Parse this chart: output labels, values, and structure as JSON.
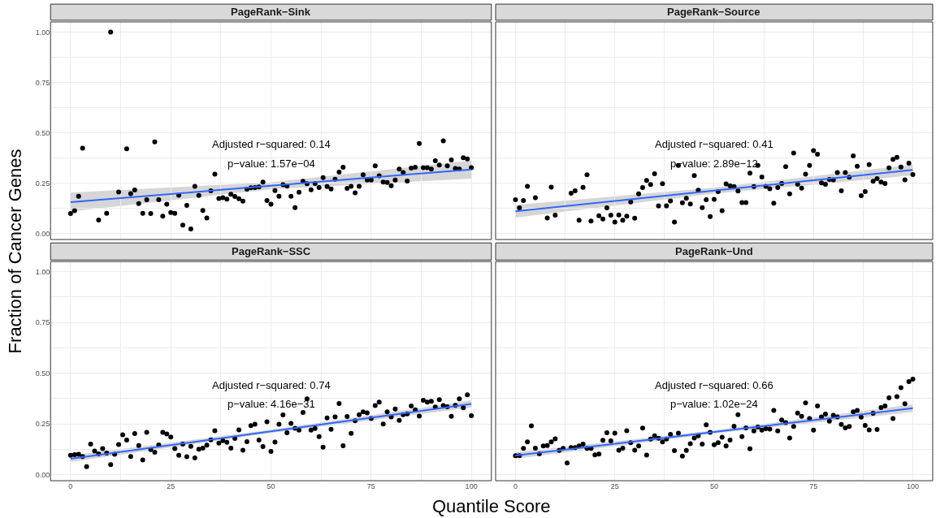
{
  "chart_data": [
    {
      "type": "scatter",
      "title": "PageRank−Sink",
      "ylabel": "Fraction of Cancer Genes",
      "xlim": [
        -5,
        105
      ],
      "ylim": [
        -0.03,
        1.05
      ],
      "grid": true,
      "tick_labels": "y",
      "xticks": [
        {
          "value": 0,
          "label": null
        },
        {
          "value": 12.5,
          "label": null
        },
        {
          "value": 25,
          "label": null
        },
        {
          "value": 37.5,
          "label": null
        },
        {
          "value": 50,
          "label": null
        },
        {
          "value": 62.5,
          "label": null
        },
        {
          "value": 75,
          "label": null
        },
        {
          "value": 87.5,
          "label": null
        },
        {
          "value": 100,
          "label": null
        }
      ],
      "yticks": [
        {
          "value": 0,
          "label": "0.00"
        },
        {
          "value": 0.125,
          "label": null
        },
        {
          "value": 0.25,
          "label": "0.25"
        },
        {
          "value": 0.375,
          "label": null
        },
        {
          "value": 0.5,
          "label": "0.50"
        },
        {
          "value": 0.625,
          "label": null
        },
        {
          "value": 0.75,
          "label": "0.75"
        },
        {
          "value": 0.875,
          "label": null
        },
        {
          "value": 1,
          "label": "1.00"
        }
      ],
      "annotations": [
        "Adjusted r−squared: 0.14",
        "p−value: 1.57e−04"
      ],
      "series": [
        {
          "color": "#000000",
          "marker": "circle",
          "x": [
            0,
            1,
            2,
            3,
            7,
            9,
            10,
            12,
            14,
            15,
            16,
            17,
            18,
            19,
            20,
            21,
            22,
            23,
            24,
            25,
            26,
            27,
            28,
            29,
            30,
            31,
            32,
            33,
            34,
            35,
            36,
            37,
            38,
            39,
            40,
            41,
            42,
            43,
            44,
            45,
            46,
            47,
            48,
            49,
            50,
            51,
            52,
            53,
            54,
            55,
            56,
            57,
            58,
            59,
            60,
            61,
            62,
            63,
            64,
            65,
            66,
            67,
            68,
            69,
            70,
            71,
            72,
            73,
            74,
            75,
            76,
            77,
            78,
            79,
            80,
            81,
            82,
            83,
            84,
            85,
            86,
            87,
            88,
            89,
            90,
            91,
            92,
            93,
            94,
            95,
            96,
            97,
            98,
            99,
            100
          ],
          "values": [
            0.099,
            0.113,
            0.185,
            0.423,
            0.067,
            0.1,
            1.0,
            0.206,
            0.42,
            0.198,
            0.216,
            0.148,
            0.1,
            0.167,
            0.099,
            0.455,
            0.168,
            0.086,
            0.145,
            0.104,
            0.1,
            0.19,
            0.042,
            0.139,
            0.022,
            0.234,
            0.189,
            0.114,
            0.077,
            0.212,
            0.294,
            0.174,
            0.178,
            0.171,
            0.195,
            0.184,
            0.173,
            0.16,
            0.22,
            0.227,
            0.228,
            0.231,
            0.255,
            0.163,
            0.145,
            0.213,
            0.185,
            0.242,
            0.235,
            0.185,
            0.128,
            0.205,
            0.259,
            0.247,
            0.217,
            0.248,
            0.228,
            0.277,
            0.233,
            0.221,
            0.269,
            0.305,
            0.329,
            0.224,
            0.234,
            0.202,
            0.234,
            0.291,
            0.265,
            0.265,
            0.336,
            0.286,
            0.255,
            0.253,
            0.237,
            0.265,
            0.32,
            0.302,
            0.26,
            0.325,
            0.329,
            0.447,
            0.327,
            0.327,
            0.32,
            0.361,
            0.34,
            0.46,
            0.336,
            0.365,
            0.323,
            0.32,
            0.376,
            0.37,
            0.327
          ]
        },
        {
          "type": "line",
          "color": "#3366ff",
          "marker": "none",
          "line_style": "solid",
          "x": [
            0,
            50,
            100
          ],
          "values": [
            0.155,
            0.237,
            0.318
          ],
          "lower": [
            0.109,
            0.22,
            0.272
          ],
          "upper": [
            0.203,
            0.254,
            0.362
          ]
        }
      ]
    },
    {
      "type": "scatter",
      "title": "PageRank−Source",
      "xlim": [
        -5,
        105
      ],
      "ylim": [
        -0.03,
        1.05
      ],
      "grid": true,
      "tick_labels": false,
      "xticks": [
        {
          "value": 0,
          "label": null
        },
        {
          "value": 12.5,
          "label": null
        },
        {
          "value": 25,
          "label": null
        },
        {
          "value": 37.5,
          "label": null
        },
        {
          "value": 50,
          "label": null
        },
        {
          "value": 62.5,
          "label": null
        },
        {
          "value": 75,
          "label": null
        },
        {
          "value": 87.5,
          "label": null
        },
        {
          "value": 100,
          "label": null
        }
      ],
      "yticks": [
        {
          "value": 0,
          "label": null
        },
        {
          "value": 0.125,
          "label": null
        },
        {
          "value": 0.25,
          "label": null
        },
        {
          "value": 0.375,
          "label": null
        },
        {
          "value": 0.5,
          "label": null
        },
        {
          "value": 0.625,
          "label": null
        },
        {
          "value": 0.75,
          "label": null
        },
        {
          "value": 0.875,
          "label": null
        },
        {
          "value": 1,
          "label": null
        }
      ],
      "annotations": [
        "Adjusted r−squared: 0.41",
        "p−value: 2.89e−12"
      ],
      "series": [
        {
          "color": "#000000",
          "marker": "circle",
          "x": [
            0,
            1,
            2,
            3,
            5,
            8,
            9,
            10,
            14,
            15,
            16,
            17,
            18,
            19,
            21,
            22,
            23,
            24,
            25,
            26,
            27,
            28,
            29,
            30,
            31,
            32,
            33,
            34,
            35,
            36,
            37,
            38,
            39,
            40,
            41,
            42,
            43,
            44,
            45,
            46,
            47,
            48,
            49,
            50,
            51,
            52,
            53,
            54,
            55,
            56,
            57,
            58,
            59,
            60,
            61,
            62,
            63,
            64,
            65,
            66,
            67,
            68,
            69,
            70,
            71,
            72,
            73,
            74,
            75,
            76,
            77,
            78,
            79,
            80,
            81,
            82,
            83,
            84,
            85,
            86,
            87,
            88,
            89,
            90,
            91,
            92,
            93,
            94,
            95,
            96,
            97,
            98,
            99,
            100
          ],
          "values": [
            0.168,
            0.127,
            0.163,
            0.234,
            0.178,
            0.077,
            0.23,
            0.091,
            0.2,
            0.212,
            0.066,
            0.229,
            0.291,
            0.062,
            0.088,
            0.072,
            0.127,
            0.091,
            0.057,
            0.092,
            0.066,
            0.086,
            0.156,
            0.076,
            0.197,
            0.228,
            0.263,
            0.243,
            0.296,
            0.137,
            0.247,
            0.137,
            0.161,
            0.057,
            0.338,
            0.152,
            0.175,
            0.146,
            0.287,
            0.215,
            0.128,
            0.167,
            0.084,
            0.17,
            0.208,
            0.113,
            0.246,
            0.236,
            0.233,
            0.211,
            0.153,
            0.153,
            0.299,
            0.233,
            0.338,
            0.28,
            0.234,
            0.222,
            0.15,
            0.228,
            0.248,
            0.332,
            0.197,
            0.399,
            0.244,
            0.225,
            0.294,
            0.338,
            0.411,
            0.393,
            0.251,
            0.244,
            0.268,
            0.266,
            0.302,
            0.212,
            0.302,
            0.279,
            0.385,
            0.334,
            0.188,
            0.208,
            0.342,
            0.259,
            0.272,
            0.255,
            0.248,
            0.326,
            0.368,
            0.378,
            0.33,
            0.266,
            0.349,
            0.292
          ]
        },
        {
          "type": "line",
          "color": "#3366ff",
          "marker": "none",
          "line_style": "solid",
          "x": [
            0,
            50,
            100
          ],
          "values": [
            0.11,
            0.213,
            0.316
          ],
          "lower": [
            0.079,
            0.198,
            0.288
          ],
          "upper": [
            0.141,
            0.228,
            0.342
          ]
        }
      ]
    },
    {
      "type": "scatter",
      "title": "PageRank−SSC",
      "xlabel": "Quantile Score",
      "xlim": [
        -5,
        105
      ],
      "ylim": [
        -0.03,
        1.05
      ],
      "grid": true,
      "xticks": [
        0,
        {
          "value": 12.5,
          "label": null
        },
        25,
        {
          "value": 37.5,
          "label": null
        },
        50,
        {
          "value": 62.5,
          "label": null
        },
        75,
        {
          "value": 87.5,
          "label": null
        },
        100
      ],
      "yticks": [
        {
          "value": 0,
          "label": "0.00"
        },
        {
          "value": 0.125,
          "label": null
        },
        {
          "value": 0.25,
          "label": "0.25"
        },
        {
          "value": 0.375,
          "label": null
        },
        {
          "value": 0.5,
          "label": "0.50"
        },
        {
          "value": 0.625,
          "label": null
        },
        {
          "value": 0.75,
          "label": "0.75"
        },
        {
          "value": 0.875,
          "label": null
        },
        {
          "value": 1,
          "label": "1.00"
        }
      ],
      "annotations": [
        "Adjusted r−squared: 0.74",
        "p−value: 4.16e−31"
      ],
      "series": [
        {
          "color": "#000000",
          "marker": "circle",
          "x": [
            0,
            1,
            2,
            3,
            4,
            5,
            6,
            7,
            8,
            9,
            10,
            11,
            12,
            13,
            14,
            15,
            16,
            17,
            18,
            19,
            20,
            21,
            22,
            23,
            24,
            25,
            26,
            27,
            28,
            29,
            30,
            31,
            32,
            33,
            34,
            35,
            36,
            37,
            38,
            39,
            40,
            41,
            42,
            43,
            44,
            45,
            46,
            47,
            48,
            49,
            50,
            51,
            52,
            53,
            54,
            55,
            56,
            57,
            58,
            59,
            60,
            61,
            62,
            63,
            64,
            65,
            66,
            67,
            68,
            69,
            70,
            71,
            72,
            73,
            74,
            75,
            76,
            77,
            78,
            79,
            80,
            81,
            82,
            83,
            84,
            85,
            86,
            87,
            88,
            89,
            90,
            91,
            92,
            93,
            94,
            95,
            96,
            97,
            98,
            99,
            100
          ],
          "values": [
            0.095,
            0.098,
            0.1,
            0.089,
            0.039,
            0.15,
            0.116,
            0.102,
            0.128,
            0.106,
            0.049,
            0.1,
            0.148,
            0.196,
            0.17,
            0.089,
            0.202,
            0.143,
            0.072,
            0.208,
            0.123,
            0.11,
            0.146,
            0.208,
            0.2,
            0.185,
            0.128,
            0.095,
            0.15,
            0.088,
            0.139,
            0.082,
            0.125,
            0.13,
            0.145,
            0.171,
            0.216,
            0.155,
            0.167,
            0.159,
            0.13,
            0.178,
            0.22,
            0.12,
            0.162,
            0.241,
            0.248,
            0.17,
            0.138,
            0.26,
            0.114,
            0.16,
            0.248,
            0.294,
            0.206,
            0.252,
            0.228,
            0.219,
            0.306,
            0.373,
            0.219,
            0.227,
            0.187,
            0.135,
            0.279,
            0.223,
            0.284,
            0.35,
            0.142,
            0.286,
            0.203,
            0.265,
            0.295,
            0.309,
            0.304,
            0.276,
            0.34,
            0.357,
            0.249,
            0.309,
            0.284,
            0.323,
            0.267,
            0.295,
            0.299,
            0.338,
            0.319,
            0.288,
            0.366,
            0.357,
            0.361,
            0.333,
            0.369,
            0.34,
            0.334,
            0.287,
            0.341,
            0.373,
            0.329,
            0.393,
            0.29
          ]
        },
        {
          "type": "line",
          "color": "#3366ff",
          "marker": "none",
          "line_style": "solid",
          "x": [
            0,
            50,
            100
          ],
          "values": [
            0.078,
            0.213,
            0.348
          ],
          "lower": [
            0.062,
            0.205,
            0.33
          ],
          "upper": [
            0.094,
            0.221,
            0.366
          ]
        }
      ]
    },
    {
      "type": "scatter",
      "title": "PageRank−Und",
      "xlim": [
        -5,
        105
      ],
      "ylim": [
        -0.03,
        1.05
      ],
      "grid": true,
      "tick_labels": "x",
      "xticks": [
        0,
        {
          "value": 12.5,
          "label": null
        },
        25,
        {
          "value": 37.5,
          "label": null
        },
        50,
        {
          "value": 62.5,
          "label": null
        },
        75,
        {
          "value": 87.5,
          "label": null
        },
        100
      ],
      "yticks": [
        {
          "value": 0,
          "label": null
        },
        {
          "value": 0.125,
          "label": null
        },
        {
          "value": 0.25,
          "label": null
        },
        {
          "value": 0.375,
          "label": null
        },
        {
          "value": 0.5,
          "label": null
        },
        {
          "value": 0.625,
          "label": null
        },
        {
          "value": 0.75,
          "label": null
        },
        {
          "value": 0.875,
          "label": null
        },
        {
          "value": 1,
          "label": null
        }
      ],
      "annotations": [
        "Adjusted r−squared: 0.66",
        "p−value: 1.02e−24"
      ],
      "series": [
        {
          "color": "#000000",
          "marker": "circle",
          "x": [
            0,
            1,
            2,
            3,
            4,
            5,
            6,
            7,
            8,
            9,
            10,
            11,
            12,
            13,
            14,
            15,
            16,
            17,
            18,
            19,
            20,
            21,
            22,
            23,
            24,
            25,
            26,
            27,
            28,
            29,
            30,
            31,
            32,
            33,
            34,
            35,
            36,
            37,
            38,
            39,
            40,
            41,
            42,
            43,
            44,
            45,
            46,
            47,
            48,
            49,
            50,
            51,
            52,
            53,
            54,
            55,
            56,
            57,
            58,
            59,
            60,
            61,
            62,
            63,
            64,
            65,
            66,
            67,
            68,
            69,
            70,
            71,
            72,
            73,
            74,
            75,
            76,
            77,
            78,
            79,
            80,
            81,
            82,
            83,
            84,
            85,
            86,
            87,
            88,
            89,
            90,
            91,
            92,
            93,
            94,
            95,
            96,
            97,
            98,
            99,
            100
          ],
          "values": [
            0.093,
            0.093,
            0.129,
            0.161,
            0.24,
            0.13,
            0.102,
            0.141,
            0.143,
            0.161,
            0.176,
            0.119,
            0.129,
            0.057,
            0.133,
            0.133,
            0.141,
            0.15,
            0.129,
            0.129,
            0.097,
            0.101,
            0.169,
            0.206,
            0.166,
            0.204,
            0.12,
            0.13,
            0.216,
            0.157,
            0.12,
            0.141,
            0.229,
            0.096,
            0.175,
            0.191,
            0.179,
            0.161,
            0.175,
            0.198,
            0.118,
            0.204,
            0.091,
            0.119,
            0.152,
            0.18,
            0.191,
            0.15,
            0.245,
            0.208,
            0.147,
            0.157,
            0.184,
            0.141,
            0.17,
            0.238,
            0.295,
            0.187,
            0.23,
            0.127,
            0.215,
            0.234,
            0.219,
            0.226,
            0.224,
            0.316,
            0.215,
            0.269,
            0.256,
            0.18,
            0.237,
            0.303,
            0.287,
            0.353,
            0.276,
            0.219,
            0.338,
            0.284,
            0.298,
            0.263,
            0.292,
            0.284,
            0.247,
            0.23,
            0.237,
            0.309,
            0.316,
            0.283,
            0.242,
            0.22,
            0.302,
            0.222,
            0.33,
            0.338,
            0.378,
            0.276,
            0.384,
            0.428,
            0.349,
            0.458,
            0.47
          ]
        },
        {
          "type": "line",
          "color": "#3366ff",
          "marker": "none",
          "line_style": "solid",
          "x": [
            0,
            50,
            100
          ],
          "values": [
            0.094,
            0.21,
            0.327
          ],
          "lower": [
            0.078,
            0.202,
            0.308
          ],
          "upper": [
            0.11,
            0.218,
            0.346
          ]
        }
      ]
    }
  ]
}
